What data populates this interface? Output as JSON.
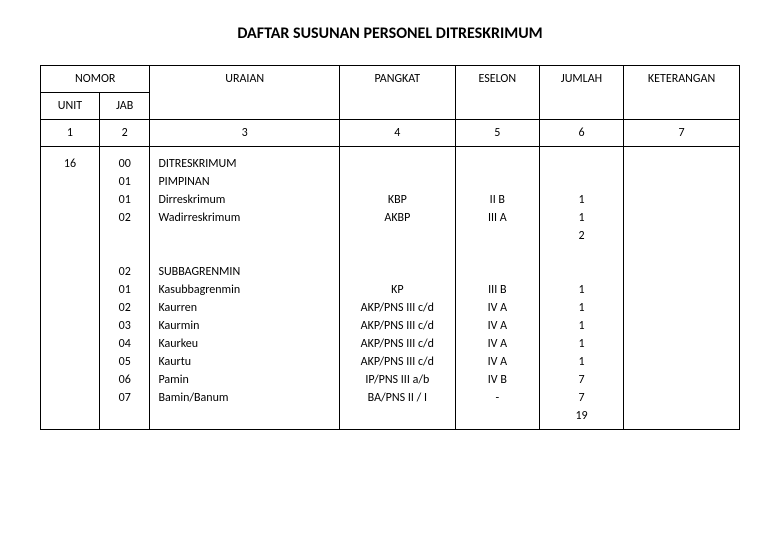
{
  "title": "DAFTAR SUSUNAN PERSONEL DITRESKRIMUM",
  "columns": {
    "nomor": "NOMOR",
    "unit": "UNIT",
    "jab": "JAB",
    "uraian": "URAIAN",
    "pangkat": "PANGKAT",
    "eselon": "ESELON",
    "jumlah": "JUMLAH",
    "keterangan": "KETERANGAN"
  },
  "col_numbers": {
    "unit": "1",
    "jab": "2",
    "uraian": "3",
    "pangkat": "4",
    "eselon": "5",
    "jumlah": "6",
    "keterangan": "7"
  },
  "body": {
    "unit": "16",
    "jab": "00\n01\n01\n02\n\n\n02\n01\n02\n03\n04\n05\n06\n07",
    "uraian": "DITRESKRIMUM\nPIMPINAN\nDirreskrimum\nWadirreskrimum\n\n\nSUBBAGRENMIN\nKasubbagrenmin\nKaurren\nKaurmin\nKaurkeu\nKaurtu\nPamin\nBamin/Banum",
    "pangkat": "\n\nKBP\nAKBP\n\n\n\nKP\nAKP/PNS III c/d\nAKP/PNS III c/d\nAKP/PNS III c/d\nAKP/PNS III c/d\nIP/PNS III a/b\nBA/PNS II / I",
    "eselon": "\n\nII B\nIII A\n\n\n\nIII B\nIV A\nIV A\nIV A\nIV A\nIV B\n-",
    "jumlah": "\n\n1\n1\n2\n\n\n1\n1\n1\n1\n1\n7\n7\n19",
    "keterangan": ""
  },
  "style": {
    "background_color": "#ffffff",
    "border_color": "#000000",
    "title_fontsize": 16,
    "body_fontsize": 12,
    "font_family": "Calibri, Arial, sans-serif"
  }
}
